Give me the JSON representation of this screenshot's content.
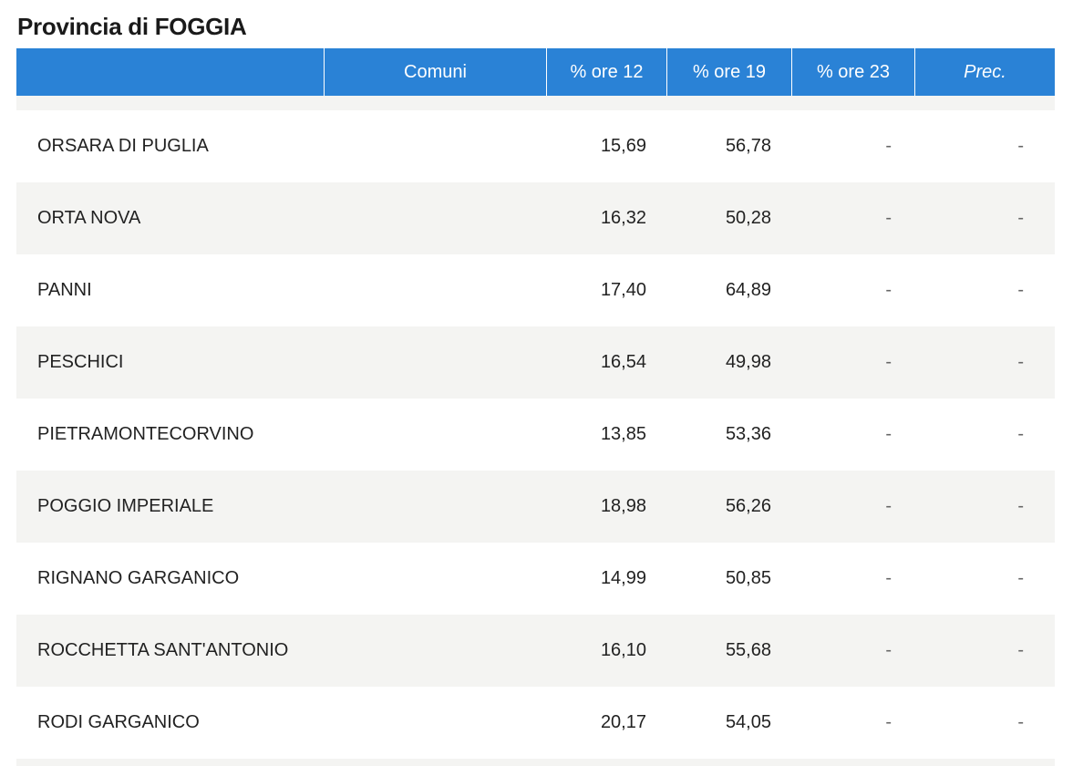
{
  "page": {
    "title": "Provincia di FOGGIA"
  },
  "table": {
    "columns": [
      "",
      "Comuni",
      "% ore 12",
      "% ore 19",
      "% ore 23",
      "Prec."
    ],
    "rows": [
      {
        "name": "ORSARA DI PUGLIA",
        "ore12": "15,69",
        "ore19": "56,78",
        "ore23": "-",
        "prec": "-"
      },
      {
        "name": "ORTA NOVA",
        "ore12": "16,32",
        "ore19": "50,28",
        "ore23": "-",
        "prec": "-"
      },
      {
        "name": "PANNI",
        "ore12": "17,40",
        "ore19": "64,89",
        "ore23": "-",
        "prec": "-"
      },
      {
        "name": "PESCHICI",
        "ore12": "16,54",
        "ore19": "49,98",
        "ore23": "-",
        "prec": "-"
      },
      {
        "name": "PIETRAMONTECORVINO",
        "ore12": "13,85",
        "ore19": "53,36",
        "ore23": "-",
        "prec": "-"
      },
      {
        "name": "POGGIO IMPERIALE",
        "ore12": "18,98",
        "ore19": "56,26",
        "ore23": "-",
        "prec": "-"
      },
      {
        "name": "RIGNANO GARGANICO",
        "ore12": "14,99",
        "ore19": "50,85",
        "ore23": "-",
        "prec": "-"
      },
      {
        "name": "ROCCHETTA SANT'ANTONIO",
        "ore12": "16,10",
        "ore19": "55,68",
        "ore23": "-",
        "prec": "-"
      },
      {
        "name": "RODI GARGANICO",
        "ore12": "20,17",
        "ore19": "54,05",
        "ore23": "-",
        "prec": "-"
      }
    ]
  }
}
